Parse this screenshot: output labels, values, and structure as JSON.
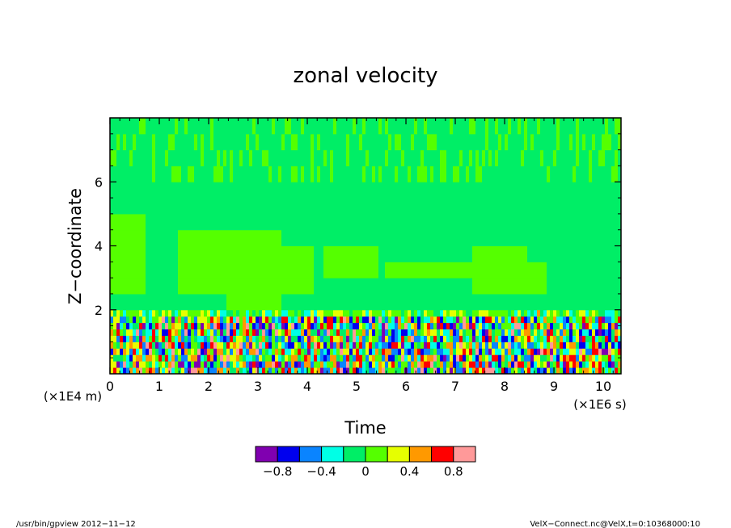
{
  "chart_data": {
    "type": "heatmap",
    "title": "zonal velocity",
    "xlabel": "Time",
    "ylabel": "Z−coordinate",
    "x_scale_note": "(×1E6 s)",
    "y_scale_note": "(×1E4 m)",
    "x_origin_label": "0",
    "xlim": [
      0,
      10.36
    ],
    "ylim": [
      0,
      8
    ],
    "x_ticks": [
      "0",
      "1",
      "2",
      "3",
      "4",
      "5",
      "6",
      "7",
      "8",
      "9",
      "10"
    ],
    "y_ticks": [
      "2",
      "4",
      "6"
    ],
    "colorbar": {
      "colors": [
        "#8000b0",
        "#0000ee",
        "#0a84ff",
        "#00ffe6",
        "#00ee66",
        "#55ff00",
        "#e6ff00",
        "#ff9900",
        "#ff0000",
        "#ff9999"
      ],
      "boundaries": [
        -1.0,
        -0.8,
        -0.6,
        -0.4,
        -0.2,
        0.0,
        0.2,
        0.4,
        0.6,
        0.8,
        1.0
      ],
      "labels": [
        "−0.8",
        "−0.4",
        "0",
        "0.4",
        "0.8"
      ],
      "label_values": [
        -0.8,
        -0.4,
        0.0,
        0.4,
        0.8
      ]
    },
    "regions": [
      {
        "z_range": [
          2,
          8
        ],
        "description": "mostly near 0 (weak positive patches)",
        "dominant_colors": [
          "#00ee66",
          "#55ff00"
        ]
      },
      {
        "z_range": [
          0,
          2
        ],
        "description": "strong fluctuations, values from below −0.8 to above 0.8"
      }
    ]
  },
  "footer": {
    "left": "/usr/bin/gpview   2012−11−12",
    "right": "VelX−Connect.nc@VelX,t=0:10368000:10"
  }
}
